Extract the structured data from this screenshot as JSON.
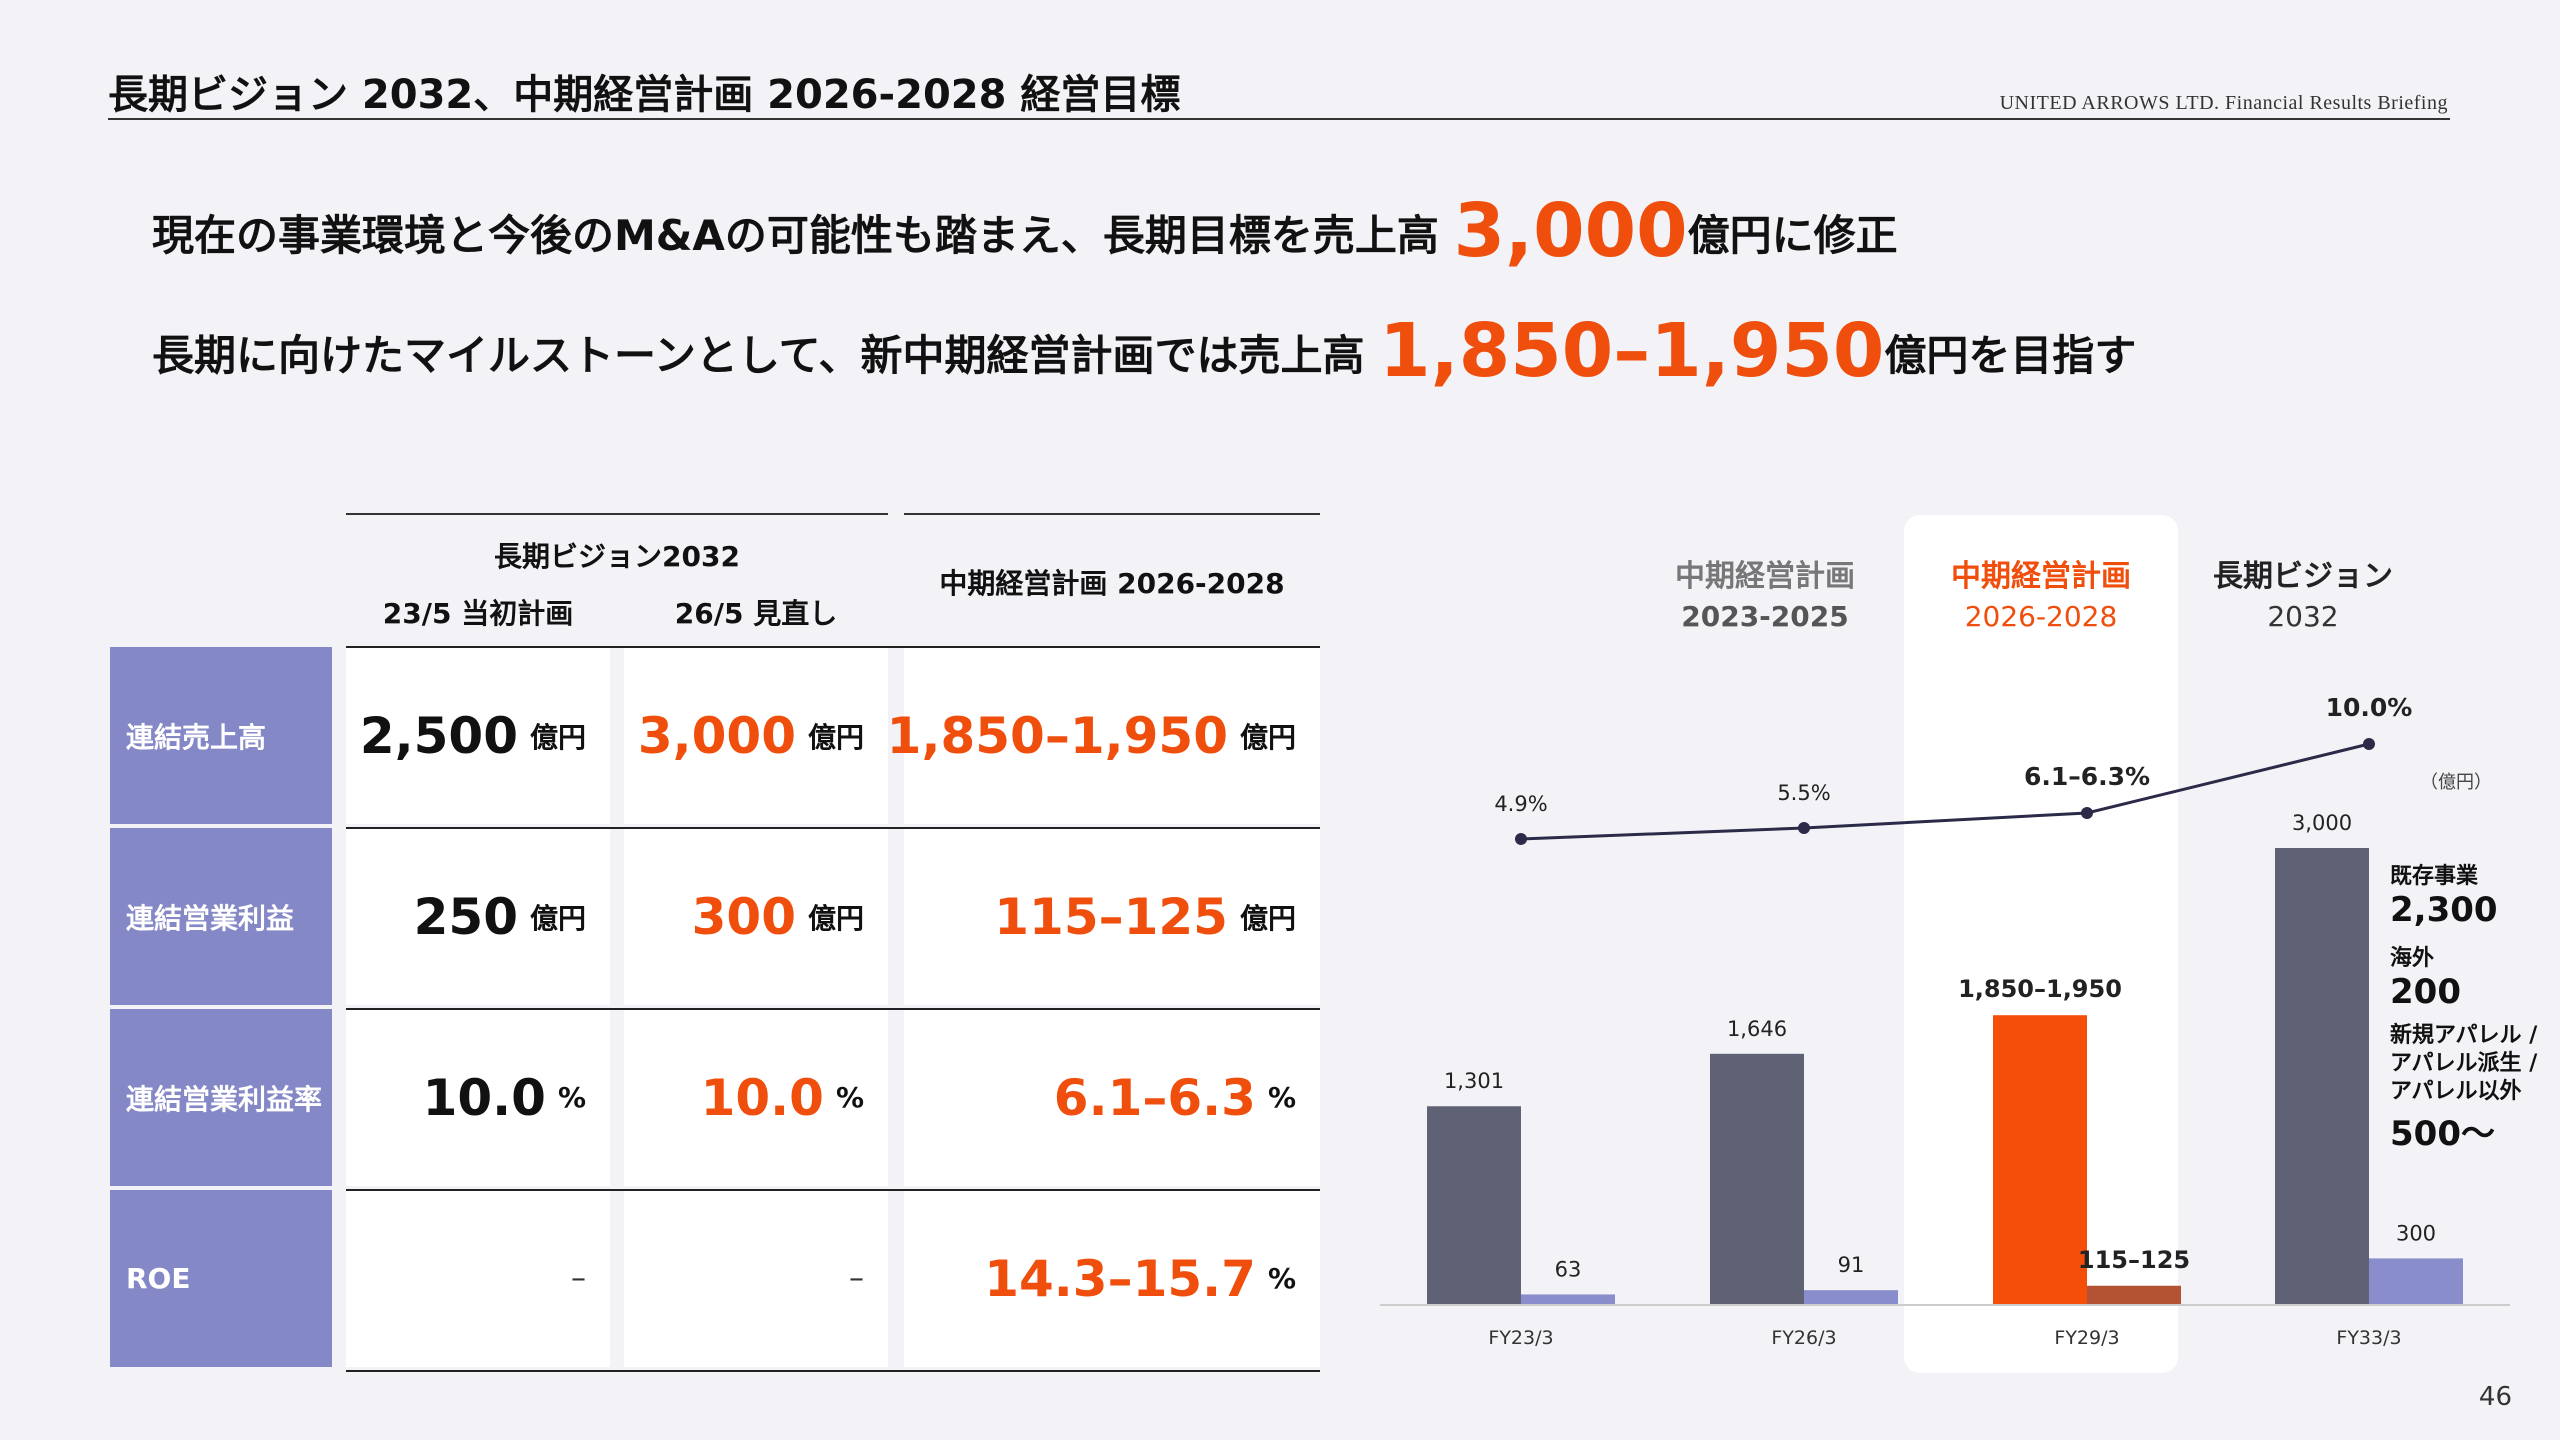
{
  "header": {
    "title": "長期ビジョン 2032、中期経営計画 2026-2028 経営目標",
    "brand": "UNITED ARROWS LTD.   Financial Results Briefing"
  },
  "headline1": {
    "pre": "現在の事業環境と今後のM&Aの可能性も踏まえ、長期目標を売上高 ",
    "big": "3,000",
    "post": "億円に修正"
  },
  "headline2": {
    "pre": "長期に向けたマイルストーンとして、新中期経営計画では売上高 ",
    "big": "1,850–1,950",
    "post": "億円を目指す"
  },
  "table": {
    "group1": "長期ビジョン2032",
    "col1": "23/5 当初計画",
    "col2": "26/5 見直し",
    "col3": "中期経営計画 2026-2028",
    "rows": [
      {
        "label": "連結売上高",
        "c1": "2,500",
        "c1u": "億円",
        "c2": "3,000",
        "c2u": "億円",
        "c3": "1,850–1,950",
        "c3u": "億円"
      },
      {
        "label": "連結営業利益",
        "c1": "250",
        "c1u": "億円",
        "c2": "300",
        "c2u": "億円",
        "c3": "115–125",
        "c3u": "億円"
      },
      {
        "label": "連結営業利益率",
        "c1": "10.0",
        "c1u": "%",
        "c2": "10.0",
        "c2u": "%",
        "c3": "6.1–6.3",
        "c3u": "%"
      },
      {
        "label": "ROE",
        "c1": "–",
        "c2": "–",
        "c3": "14.3–15.7",
        "c3u": "%"
      }
    ]
  },
  "phases": [
    {
      "title": "中期経営計画",
      "sub": "2023-2025"
    },
    {
      "title": "中期経営計画",
      "sub": "2026-2028"
    },
    {
      "title": "長期ビジョン",
      "sub": "2032"
    }
  ],
  "unit_note": "（億円）",
  "chart_data": {
    "type": "bar",
    "categories": [
      "FY23/3",
      "FY26/3",
      "FY29/3",
      "FY33/3"
    ],
    "series": [
      {
        "values": [
          1301,
          1646,
          1900,
          3000
        ],
        "labels": [
          "1,301",
          "1,646",
          "1,850–1,950",
          "3,000"
        ],
        "color": "#5f6175",
        "highlight_color": "#f54e08"
      },
      {
        "values": [
          63,
          91,
          120,
          300
        ],
        "labels": [
          "63",
          "91",
          "115–125",
          "300"
        ],
        "color": "#8a8dcc",
        "highlight_color": "#b35333"
      },
      {
        "type": "line",
        "values": [
          4.9,
          5.5,
          6.2,
          10.0
        ],
        "labels": [
          "4.9%",
          "5.5%",
          "6.1–6.3%",
          "10.0%"
        ],
        "color": "#2b2a48"
      }
    ],
    "ylim": [
      0,
      3000
    ]
  },
  "breakdown": [
    {
      "label": "既存事業",
      "value": "2,300"
    },
    {
      "label": "海外",
      "value": "200"
    },
    {
      "label": "新規アパレル /\nアパレル派生 /\nアパレル以外",
      "value": "500〜"
    }
  ],
  "page_number": "46"
}
